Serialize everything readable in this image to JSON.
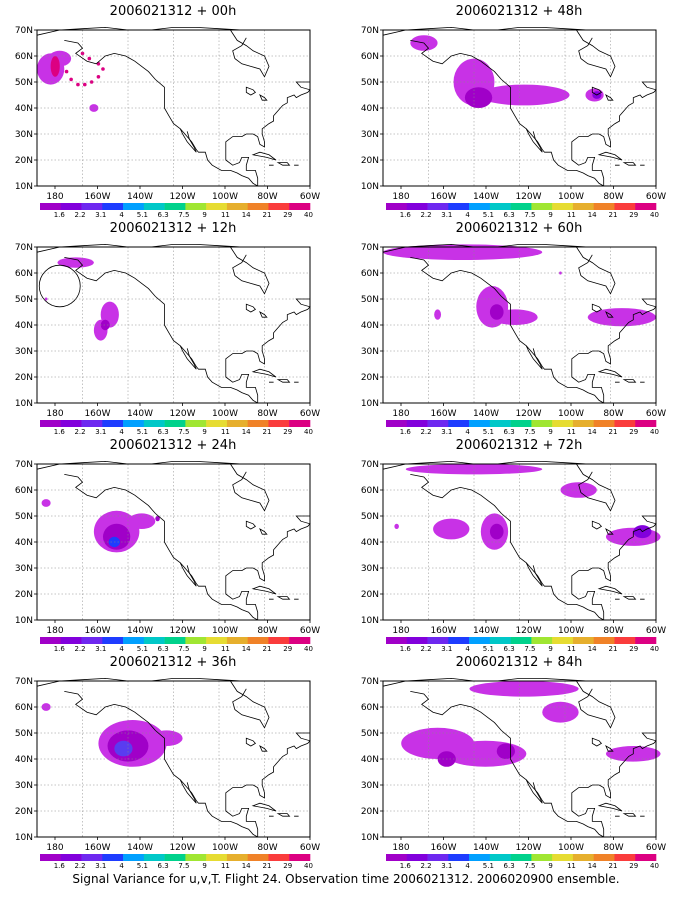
{
  "figure": {
    "caption": "Signal Variance for u,v,T. Flight 24. Observation time 2006021312. 2006020900 ensemble.",
    "lat_labels": [
      "70N",
      "60N",
      "50N",
      "40N",
      "30N",
      "20N",
      "10N"
    ],
    "lon_labels": [
      "180",
      "160W",
      "140W",
      "120W",
      "100W",
      "80W",
      "60W"
    ],
    "colorbar": {
      "labels": [
        "1.6",
        "2.2",
        "3.1",
        "4",
        "5.1",
        "6.3",
        "7.5",
        "9",
        "11",
        "14",
        "21",
        "29",
        "40"
      ],
      "colors": [
        "#a000c8",
        "#8200dc",
        "#6e28f0",
        "#1e3cff",
        "#00a0ff",
        "#00c8c8",
        "#00d28c",
        "#a0e632",
        "#e6dc32",
        "#e6af2d",
        "#f08228",
        "#fa3c3c",
        "#dc0082"
      ]
    },
    "colors": {
      "fill_light": "#c832e6",
      "fill_mid": "#a000c8",
      "fill_dark": "#8200dc",
      "fill_blue": "#5a3cf0",
      "fill_core": "#1e3cff",
      "fill_red": "#dc0082"
    },
    "panels": [
      {
        "id": "00h",
        "title": "2006021312 + 00h"
      },
      {
        "id": "12h",
        "title": "2006021312 + 12h"
      },
      {
        "id": "24h",
        "title": "2006021312 + 24h"
      },
      {
        "id": "36h",
        "title": "2006021312 + 36h"
      },
      {
        "id": "48h",
        "title": "2006021312 + 48h"
      },
      {
        "id": "60h",
        "title": "2006021312 + 60h"
      },
      {
        "id": "72h",
        "title": "2006021312 + 72h"
      },
      {
        "id": "84h",
        "title": "2006021312 + 84h"
      }
    ]
  }
}
